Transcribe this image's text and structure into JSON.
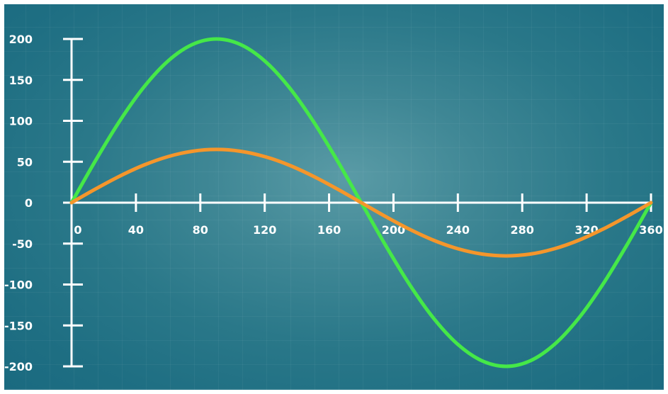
{
  "chart_data": {
    "type": "line",
    "xlim": [
      0,
      360
    ],
    "ylim": [
      -200,
      200
    ],
    "x_ticks": [
      0,
      40,
      80,
      120,
      160,
      200,
      240,
      280,
      320,
      360
    ],
    "y_ticks": [
      200,
      150,
      100,
      50,
      0,
      -50,
      -100,
      -150,
      -200
    ],
    "x": [
      0,
      15,
      30,
      45,
      60,
      75,
      90,
      105,
      120,
      135,
      150,
      165,
      180,
      195,
      210,
      225,
      240,
      255,
      270,
      285,
      300,
      315,
      330,
      345,
      360
    ],
    "series": [
      {
        "color": "#45e848",
        "values": [
          0,
          51.8,
          100,
          141.4,
          173.2,
          193.2,
          200,
          193.2,
          173.2,
          141.4,
          100,
          51.8,
          0,
          -51.8,
          -100,
          -141.4,
          -173.2,
          -193.2,
          -200,
          -193.2,
          -173.2,
          -141.4,
          -100,
          -51.8,
          0
        ]
      },
      {
        "color": "#f5962b",
        "values": [
          0,
          16.8,
          32.5,
          46,
          56.3,
          62.8,
          65,
          62.8,
          56.3,
          46,
          32.5,
          16.8,
          0,
          -16.8,
          -32.5,
          -46,
          -56.3,
          -62.8,
          -65,
          -62.8,
          -56.3,
          -46,
          -32.5,
          -16.8,
          0
        ]
      }
    ],
    "grid": true,
    "background": "#2a7889",
    "axis_color": "#ffffff"
  }
}
